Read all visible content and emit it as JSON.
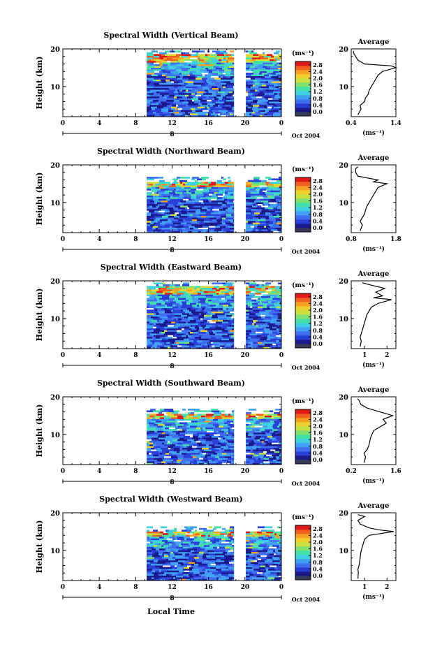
{
  "figure": {
    "xlabel": "Local Time",
    "date_label": "Oct 2004",
    "colorbar_unit": "(ms⁻¹)",
    "avg_title": "Average",
    "avg_unit": "(ms⁻¹)",
    "ylabel": "Height (km)",
    "day_label": "8"
  },
  "chart_data": [
    {
      "type": "heatmap",
      "title": "Spectral Width (Vertical Beam)",
      "ylabel": "Height (km)",
      "xlabel": "Local Time",
      "xlim": [
        0,
        24
      ],
      "ylim": [
        2,
        20
      ],
      "x_ticks": [
        "0",
        "4",
        "8",
        "12",
        "16",
        "20",
        "0"
      ],
      "y_ticks": [
        "10",
        "20"
      ],
      "data_time_ranges": [
        [
          9.2,
          18.8
        ],
        [
          20.1,
          24
        ]
      ],
      "data_height_range": [
        2,
        19.5
      ],
      "colorbar": {
        "label": "(ms⁻¹)",
        "ticks": [
          "0.0",
          "0.4",
          "0.8",
          "1.2",
          "1.6",
          "2.0",
          "2.4",
          "2.8"
        ]
      },
      "average": {
        "title": "Average",
        "xlabel": "(ms⁻¹)",
        "x_ticks": [
          "0.4",
          "1.4"
        ],
        "xlim": [
          0.4,
          1.4
        ],
        "y_ticks": [
          "10",
          "20"
        ],
        "profile": [
          [
            2.5,
            0.55
          ],
          [
            4,
            0.62
          ],
          [
            5,
            0.6
          ],
          [
            6,
            0.7
          ],
          [
            7,
            0.72
          ],
          [
            8,
            0.78
          ],
          [
            9,
            0.8
          ],
          [
            10,
            0.85
          ],
          [
            11,
            0.9
          ],
          [
            12,
            0.95
          ],
          [
            13,
            1.0
          ],
          [
            14,
            1.1
          ],
          [
            15,
            1.4
          ],
          [
            15.5,
            1.3
          ],
          [
            16,
            0.7
          ],
          [
            17,
            0.55
          ],
          [
            18,
            0.5
          ],
          [
            19,
            0.45
          ],
          [
            19.5,
            0.45
          ]
        ]
      }
    },
    {
      "type": "heatmap",
      "title": "Spectral Width (Northward Beam)",
      "ylabel": "Height (km)",
      "xlabel": "Local Time",
      "xlim": [
        0,
        24
      ],
      "ylim": [
        2,
        20
      ],
      "x_ticks": [
        "0",
        "4",
        "8",
        "12",
        "16",
        "20",
        "0"
      ],
      "y_ticks": [
        "10",
        "20"
      ],
      "data_time_ranges": [
        [
          9.2,
          18.8
        ],
        [
          20.1,
          24
        ]
      ],
      "data_height_range": [
        2,
        16.5
      ],
      "colorbar": {
        "label": "(ms⁻¹)",
        "ticks": [
          "0.0",
          "0.4",
          "0.8",
          "1.2",
          "1.6",
          "2.0",
          "2.4",
          "2.8"
        ]
      },
      "average": {
        "title": "Average",
        "xlabel": "(ms⁻¹)",
        "x_ticks": [
          "0.8",
          "1.8"
        ],
        "xlim": [
          0.8,
          1.8
        ],
        "y_ticks": [
          "10",
          "20"
        ],
        "profile": [
          [
            2.5,
            1.0
          ],
          [
            4,
            1.05
          ],
          [
            5,
            1.0
          ],
          [
            6,
            1.05
          ],
          [
            7,
            1.1
          ],
          [
            8,
            1.12
          ],
          [
            9,
            1.15
          ],
          [
            10,
            1.2
          ],
          [
            11,
            1.25
          ],
          [
            12,
            1.3
          ],
          [
            13,
            1.35
          ],
          [
            14,
            1.4
          ],
          [
            15,
            1.6
          ],
          [
            15.5,
            1.3
          ],
          [
            16,
            1.4
          ],
          [
            17,
            0.95
          ],
          [
            18,
            0.9
          ],
          [
            19,
            0.9
          ],
          [
            19.5,
            0.95
          ]
        ]
      }
    },
    {
      "type": "heatmap",
      "title": "Spectral Width (Eastward Beam)",
      "ylabel": "Height (km)",
      "xlabel": "Local Time",
      "xlim": [
        0,
        24
      ],
      "ylim": [
        2,
        20
      ],
      "x_ticks": [
        "0",
        "4",
        "8",
        "12",
        "16",
        "20",
        "0"
      ],
      "y_ticks": [
        "10",
        "20"
      ],
      "data_time_ranges": [
        [
          9.2,
          18.8
        ],
        [
          20.1,
          24
        ]
      ],
      "data_height_range": [
        2,
        19.5
      ],
      "colorbar": {
        "label": "(ms⁻¹)",
        "ticks": [
          "0.0",
          "0.4",
          "0.8",
          "1.2",
          "1.6",
          "2.0",
          "2.4",
          "2.8"
        ]
      },
      "average": {
        "title": "Average",
        "xlabel": "(ms⁻¹)",
        "x_ticks": [
          "1",
          "2"
        ],
        "xlim": [
          0.4,
          2.4
        ],
        "y_ticks": [
          "10",
          "20"
        ],
        "profile": [
          [
            2.5,
            0.8
          ],
          [
            4,
            0.85
          ],
          [
            5,
            0.8
          ],
          [
            6,
            0.85
          ],
          [
            7,
            0.9
          ],
          [
            8,
            0.95
          ],
          [
            9,
            1.0
          ],
          [
            10,
            1.05
          ],
          [
            11,
            1.1
          ],
          [
            12,
            1.2
          ],
          [
            13,
            1.3
          ],
          [
            14,
            1.6
          ],
          [
            15,
            2.2
          ],
          [
            15.5,
            1.4
          ],
          [
            16,
            1.8
          ],
          [
            17,
            1.5
          ],
          [
            18,
            1.9
          ],
          [
            19,
            1.2
          ],
          [
            19.5,
            0.9
          ]
        ]
      }
    },
    {
      "type": "heatmap",
      "title": "Spectral Width (Southward Beam)",
      "ylabel": "Height (km)",
      "xlabel": "Local Time",
      "xlim": [
        0,
        24
      ],
      "ylim": [
        2,
        20
      ],
      "x_ticks": [
        "0",
        "4",
        "8",
        "12",
        "16",
        "20",
        "0"
      ],
      "y_ticks": [
        "10",
        "20"
      ],
      "data_time_ranges": [
        [
          9.2,
          18.8
        ],
        [
          20.1,
          24
        ]
      ],
      "data_height_range": [
        2,
        16.5
      ],
      "colorbar": {
        "label": "(ms⁻¹)",
        "ticks": [
          "0.0",
          "0.4",
          "0.8",
          "1.2",
          "1.6",
          "2.0",
          "2.4",
          "2.8"
        ]
      },
      "average": {
        "title": "Average",
        "xlabel": "(ms⁻¹)",
        "x_ticks": [
          "0.2",
          "1.6"
        ],
        "xlim": [
          0.2,
          1.6
        ],
        "y_ticks": [
          "10",
          "20"
        ],
        "profile": [
          [
            2.5,
            0.6
          ],
          [
            4,
            0.65
          ],
          [
            5,
            0.6
          ],
          [
            6,
            0.7
          ],
          [
            7,
            0.75
          ],
          [
            8,
            0.78
          ],
          [
            9,
            0.8
          ],
          [
            10,
            0.85
          ],
          [
            11,
            0.9
          ],
          [
            12,
            1.1
          ],
          [
            13,
            1.3
          ],
          [
            14,
            1.2
          ],
          [
            15,
            1.5
          ],
          [
            16,
            1.1
          ],
          [
            17,
            0.7
          ],
          [
            18,
            0.5
          ],
          [
            19,
            0.45
          ],
          [
            19.5,
            0.4
          ]
        ]
      }
    },
    {
      "type": "heatmap",
      "title": "Spectral Width (Westward Beam)",
      "ylabel": "Height (km)",
      "xlabel": "Local Time",
      "xlim": [
        0,
        24
      ],
      "ylim": [
        2,
        20
      ],
      "x_ticks": [
        "0",
        "4",
        "8",
        "12",
        "16",
        "20",
        "0"
      ],
      "y_ticks": [
        "10",
        "20"
      ],
      "data_time_ranges": [
        [
          9.2,
          18.8
        ],
        [
          20.1,
          24
        ]
      ],
      "data_height_range": [
        2,
        16
      ],
      "colorbar": {
        "label": "(ms⁻¹)",
        "ticks": [
          "0.0",
          "0.4",
          "0.8",
          "1.2",
          "1.6",
          "2.0",
          "2.4",
          "2.8"
        ]
      },
      "average": {
        "title": "Average",
        "xlabel": "(ms⁻¹)",
        "x_ticks": [
          "1",
          "2"
        ],
        "xlim": [
          0.4,
          2.4
        ],
        "y_ticks": [
          "10",
          "20"
        ],
        "profile": [
          [
            2.5,
            0.7
          ],
          [
            4,
            0.72
          ],
          [
            5,
            0.7
          ],
          [
            6,
            0.75
          ],
          [
            7,
            0.78
          ],
          [
            8,
            0.8
          ],
          [
            9,
            0.82
          ],
          [
            10,
            0.85
          ],
          [
            11,
            0.9
          ],
          [
            12,
            0.95
          ],
          [
            13,
            1.0
          ],
          [
            14,
            1.2
          ],
          [
            15,
            2.3
          ],
          [
            15.5,
            1.6
          ],
          [
            16,
            1.2
          ],
          [
            17,
            0.8
          ],
          [
            18,
            0.7
          ],
          [
            19,
            1.0
          ],
          [
            19.5,
            0.7
          ]
        ]
      }
    }
  ]
}
